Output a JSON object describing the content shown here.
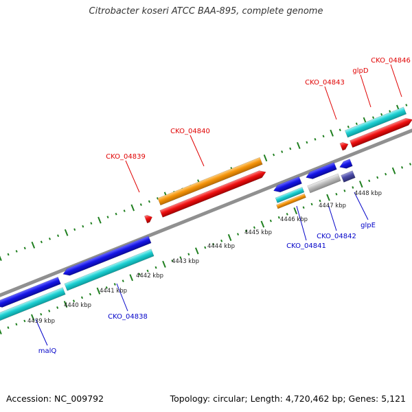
{
  "title": "Citrobacter koseri ATCC BAA-895, complete genome",
  "footer": {
    "accession": "Accession: NC_009792",
    "summary": "Topology: circular; Length: 4,720,462 bp; Genes: 5,121"
  },
  "colors": {
    "backbone": "#909090",
    "tick": "#1f7f1f",
    "label_forward": "#e00000",
    "label_reverse": "#0000c8",
    "blue_cds": "#1414e6",
    "cyan_cds": "#1ccfd2",
    "red_cds": "#ee1010",
    "orange_cds": "#f5940a",
    "gray_cds": "#bdbdbd",
    "purple_cds": "#4a4aa6"
  },
  "scale": {
    "labels": [
      "4439 kbp",
      "4440 kbp",
      "4441 kbp",
      "4442 kbp",
      "4443 kbp",
      "4444 kbp",
      "4445 kbp",
      "4446 kbp",
      "4447 kbp",
      "4448 kbp"
    ]
  },
  "features": [
    {
      "name": "CKO_04839",
      "strand": "forward",
      "color": "red"
    },
    {
      "name": "CKO_04840",
      "strand": "forward",
      "color": "orange"
    },
    {
      "name": "CKO_04843",
      "strand": "forward",
      "color": "red"
    },
    {
      "name": "glpD",
      "strand": "forward",
      "color": "cyan"
    },
    {
      "name": "CKO_04846",
      "strand": "forward",
      "color": "red"
    },
    {
      "name": "malQ",
      "strand": "reverse",
      "color": "blue"
    },
    {
      "name": "CKO_04838",
      "strand": "reverse",
      "color": "cyan"
    },
    {
      "name": "CKO_04841",
      "strand": "reverse",
      "color": "blue"
    },
    {
      "name": "CKO_04842",
      "strand": "reverse",
      "color": "gray"
    },
    {
      "name": "glpE",
      "strand": "reverse",
      "color": "purple"
    }
  ]
}
